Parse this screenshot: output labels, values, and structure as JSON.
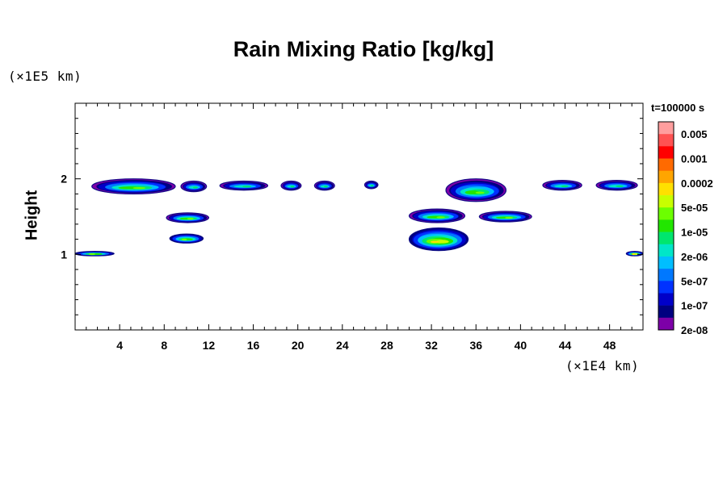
{
  "chart_data": {
    "type": "heatmap",
    "title": "Rain Mixing Ratio [kg/kg]",
    "ylabel": "Height",
    "y_unit": "(×1E5 km)",
    "x_unit": "(×1E4 km)",
    "time_label": "t=100000 s",
    "xlim": [
      0,
      51
    ],
    "ylim": [
      0,
      3
    ],
    "x_ticks": [
      "4",
      "8",
      "12",
      "16",
      "20",
      "24",
      "28",
      "32",
      "36",
      "40",
      "44",
      "48"
    ],
    "y_ticks": [
      "1",
      "2"
    ],
    "colorbar": {
      "labels": [
        "0.005",
        "0.001",
        "0.0002",
        "5e-05",
        "1e-05",
        "2e-06",
        "5e-07",
        "1e-07",
        "2e-08"
      ],
      "colors": [
        "#ff9e9e",
        "#ff5252",
        "#ff0000",
        "#ff6a00",
        "#ffa500",
        "#ffe000",
        "#c8ff00",
        "#6cff00",
        "#22e600",
        "#00e66e",
        "#00e6c8",
        "#00beff",
        "#0078ff",
        "#0032ff",
        "#0000c8",
        "#000080",
        "#7d00a8"
      ]
    },
    "cloud_regions": [
      {
        "x": [
          1.5,
          9.0
        ],
        "y": [
          1.8,
          2.0
        ],
        "min": "1e-07",
        "max": "5e-05"
      },
      {
        "x": [
          9.5,
          11.8
        ],
        "y": [
          1.83,
          1.97
        ],
        "min": "1e-07",
        "max": "1e-05"
      },
      {
        "x": [
          13.0,
          17.3
        ],
        "y": [
          1.85,
          1.97
        ],
        "min": "1e-07",
        "max": "1e-05"
      },
      {
        "x": [
          18.5,
          20.3
        ],
        "y": [
          1.85,
          1.97
        ],
        "min": "1e-07",
        "max": "1e-05"
      },
      {
        "x": [
          21.5,
          23.3
        ],
        "y": [
          1.85,
          1.97
        ],
        "min": "1e-07",
        "max": "1e-05"
      },
      {
        "x": [
          26.0,
          27.2
        ],
        "y": [
          1.87,
          1.97
        ],
        "min": "1e-07",
        "max": "1e-05"
      },
      {
        "x": [
          33.3,
          38.7
        ],
        "y": [
          1.7,
          2.0
        ],
        "min": "1e-07",
        "max": "5e-05"
      },
      {
        "x": [
          42.0,
          45.5
        ],
        "y": [
          1.85,
          1.98
        ],
        "min": "1e-07",
        "max": "1e-05"
      },
      {
        "x": [
          46.8,
          50.5
        ],
        "y": [
          1.85,
          1.98
        ],
        "min": "1e-07",
        "max": "1e-05"
      },
      {
        "x": [
          8.2,
          12.0
        ],
        "y": [
          1.42,
          1.55
        ],
        "min": "1e-07",
        "max": "5e-05"
      },
      {
        "x": [
          30.0,
          35.0
        ],
        "y": [
          1.42,
          1.6
        ],
        "min": "1e-07",
        "max": "5e-05"
      },
      {
        "x": [
          36.3,
          41.0
        ],
        "y": [
          1.43,
          1.57
        ],
        "min": "1e-07",
        "max": "5e-05"
      },
      {
        "x": [
          8.5,
          11.5
        ],
        "y": [
          1.15,
          1.27
        ],
        "min": "5e-07",
        "max": "5e-05"
      },
      {
        "x": [
          30.0,
          35.3
        ],
        "y": [
          1.05,
          1.35
        ],
        "min": "5e-07",
        "max": "0.0002"
      },
      {
        "x": [
          0.0,
          3.5
        ],
        "y": [
          0.98,
          1.04
        ],
        "min": "5e-07",
        "max": "5e-05"
      },
      {
        "x": [
          49.5,
          51.0
        ],
        "y": [
          0.98,
          1.04
        ],
        "min": "5e-07",
        "max": "0.0002"
      }
    ]
  }
}
